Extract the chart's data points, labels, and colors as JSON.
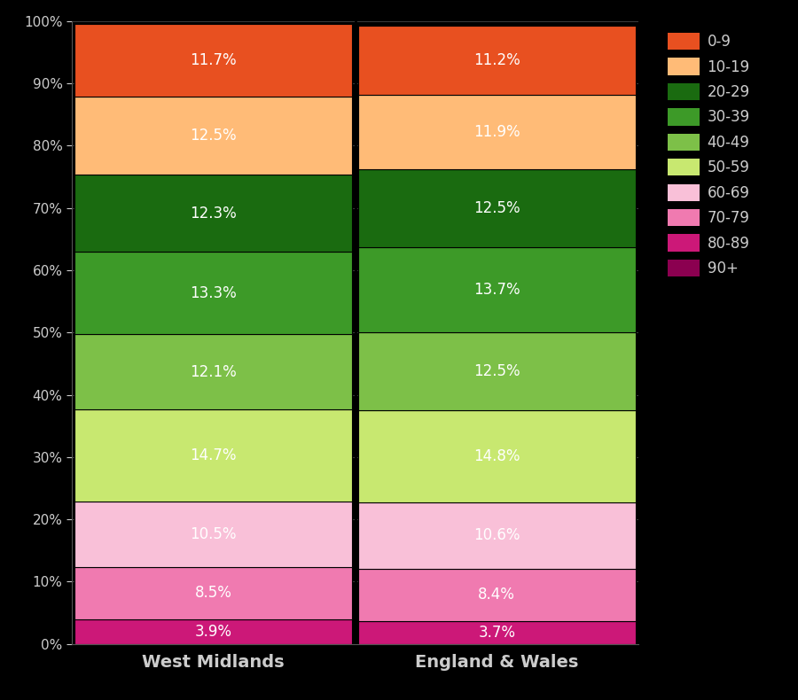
{
  "categories": [
    "West Midlands",
    "England & Wales"
  ],
  "age_groups_bottom_to_top": [
    "80-89",
    "70-79",
    "60-69",
    "50-59",
    "40-49",
    "30-39",
    "20-29",
    "10-19",
    "0-9"
  ],
  "legend_groups": [
    "0-9",
    "10-19",
    "20-29",
    "30-39",
    "40-49",
    "50-59",
    "60-69",
    "70-79",
    "80-89",
    "90+"
  ],
  "wm_values": [
    3.9,
    8.5,
    10.5,
    14.7,
    12.1,
    13.3,
    12.3,
    12.5,
    11.7
  ],
  "ew_values": [
    3.7,
    8.4,
    10.6,
    14.8,
    12.5,
    13.7,
    12.5,
    11.9,
    11.2
  ],
  "wm_labels": [
    "3.9%",
    "8.5%",
    "10.5%",
    "14.7%",
    "12.1%",
    "13.3%",
    "12.3%",
    "12.5%",
    "11.7%"
  ],
  "ew_labels": [
    "3.7%",
    "8.4%",
    "10.6%",
    "14.8%",
    "12.5%",
    "13.7%",
    "12.5%",
    "11.9%",
    "11.2%"
  ],
  "colors": {
    "0-9": "#E85020",
    "10-19": "#FFBB77",
    "20-29": "#1A6B10",
    "30-39": "#3D9A28",
    "40-49": "#7DC048",
    "50-59": "#C8E870",
    "60-69": "#F9C0D8",
    "70-79": "#F07AB0",
    "80-89": "#CC1878",
    "90+": "#8B0050"
  },
  "background_color": "#000000",
  "text_color": "#CCCCCC",
  "label_fontsize": 12,
  "tick_fontsize": 11,
  "xtick_fontsize": 14,
  "legend_fontsize": 12,
  "figsize": [
    9.0,
    7.9
  ],
  "dpi": 100,
  "yticks": [
    0,
    10,
    20,
    30,
    40,
    50,
    60,
    70,
    80,
    90,
    100
  ]
}
